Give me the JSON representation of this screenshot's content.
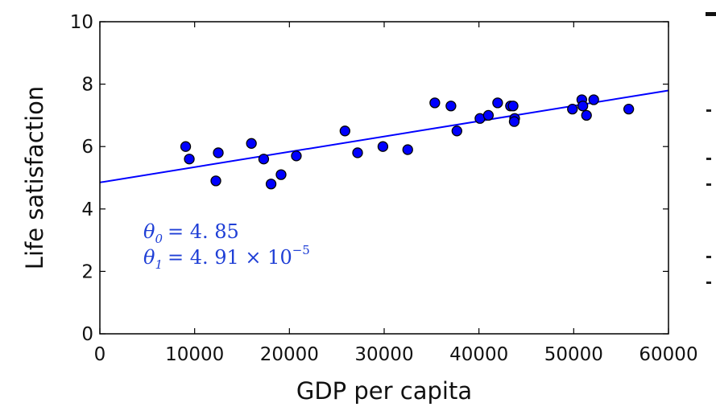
{
  "chart_data": {
    "type": "scatter",
    "title": "",
    "xlabel": "GDP per capita",
    "ylabel": "Life satisfaction",
    "xlim": [
      0,
      60000
    ],
    "ylim": [
      0,
      10
    ],
    "xticks": [
      0,
      10000,
      20000,
      30000,
      40000,
      50000,
      60000
    ],
    "yticks": [
      0,
      2,
      4,
      6,
      8,
      10
    ],
    "xtick_labels": [
      "0",
      "10000",
      "20000",
      "30000",
      "40000",
      "50000",
      "60000"
    ],
    "ytick_labels": [
      "0",
      "2",
      "4",
      "6",
      "8",
      "10"
    ],
    "grid": false,
    "points": [
      {
        "x": 9054,
        "y": 6.0
      },
      {
        "x": 9437,
        "y": 5.6
      },
      {
        "x": 12240,
        "y": 4.9
      },
      {
        "x": 12495,
        "y": 5.8
      },
      {
        "x": 15991,
        "y": 6.1
      },
      {
        "x": 17288,
        "y": 5.6
      },
      {
        "x": 18064,
        "y": 4.8
      },
      {
        "x": 19121,
        "y": 5.1
      },
      {
        "x": 20732,
        "y": 5.7
      },
      {
        "x": 25864,
        "y": 6.5
      },
      {
        "x": 27195,
        "y": 5.8
      },
      {
        "x": 29866,
        "y": 6.0
      },
      {
        "x": 32485,
        "y": 5.9
      },
      {
        "x": 35343,
        "y": 7.4
      },
      {
        "x": 37044,
        "y": 7.3
      },
      {
        "x": 37675,
        "y": 6.5
      },
      {
        "x": 40106,
        "y": 6.9
      },
      {
        "x": 40996,
        "y": 7.0
      },
      {
        "x": 41973,
        "y": 7.4
      },
      {
        "x": 43331,
        "y": 7.3
      },
      {
        "x": 43603,
        "y": 7.3
      },
      {
        "x": 43770,
        "y": 6.9
      },
      {
        "x": 43724,
        "y": 6.8
      },
      {
        "x": 49866,
        "y": 7.2
      },
      {
        "x": 50855,
        "y": 7.5
      },
      {
        "x": 50962,
        "y": 7.3
      },
      {
        "x": 51350,
        "y": 7.0
      },
      {
        "x": 52114,
        "y": 7.5
      },
      {
        "x": 55805,
        "y": 7.2
      }
    ],
    "fit_line": {
      "theta0": 4.85,
      "theta1": 4.91e-05
    },
    "annotations": {
      "theta0": {
        "symbol": "θ",
        "subscript": "0",
        "value": "= 4. 85"
      },
      "theta1": {
        "symbol": "θ",
        "subscript": "1",
        "value": "= 4. 91 × 10",
        "superscript": "−5"
      }
    },
    "colors": {
      "point_fill": "#0000ff",
      "point_edge": "#000000",
      "line": "#0000ff",
      "annotation": "#1f3fd6",
      "axis": "#000000"
    }
  }
}
